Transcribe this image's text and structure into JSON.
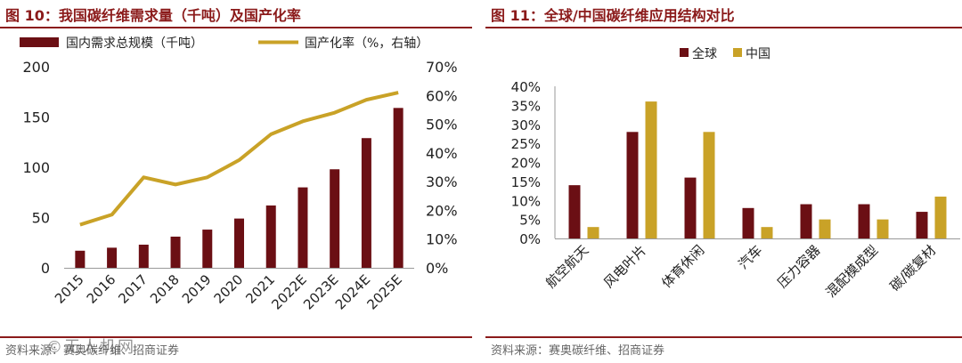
{
  "left": {
    "title": "图 10：我国碳纤维需求量（千吨）及国产化率",
    "source": "资料来源：赛奥碳纤维、招商证券",
    "watermark": "©无人机网"
  },
  "right": {
    "title": "图 11：全球/中国碳纤维应用结构对比",
    "source": "资料来源：赛奥碳纤维、招商证券"
  },
  "colors": {
    "bar": "#6b0f14",
    "line": "#c9a227",
    "accent": "#8b1a1a"
  },
  "chart_data": [
    {
      "type": "bar+line",
      "title": "我国碳纤维需求量（千吨）及国产化率",
      "categories": [
        "2015",
        "2016",
        "2017",
        "2018",
        "2019",
        "2020",
        "2021",
        "2022E",
        "2023E",
        "2024E",
        "2025E"
      ],
      "series": [
        {
          "name": "国内需求总规模（千吨）",
          "type": "bar",
          "axis": "left",
          "values": [
            17,
            20,
            23,
            31,
            38,
            49,
            62,
            80,
            98,
            129,
            159
          ]
        },
        {
          "name": "国产化率（%，右轴）",
          "type": "line",
          "axis": "right",
          "values": [
            15,
            18.5,
            31.5,
            29,
            31.5,
            37.5,
            46.5,
            51,
            54,
            58.5,
            61
          ]
        }
      ],
      "y_left": {
        "min": 0,
        "max": 200,
        "ticks": [
          "0",
          "50",
          "100",
          "150",
          "200"
        ]
      },
      "y_right": {
        "min": 0,
        "max": 70,
        "ticks": [
          "0%",
          "10%",
          "20%",
          "30%",
          "40%",
          "50%",
          "60%",
          "70%"
        ]
      },
      "legend": "top"
    },
    {
      "type": "bar",
      "title": "全球/中国碳纤维应用结构对比",
      "categories": [
        "航空航天",
        "风电叶片",
        "体育休闲",
        "汽车",
        "压力容器",
        "混配模成型",
        "碳/碳复材"
      ],
      "series": [
        {
          "name": "全球",
          "values": [
            14,
            28,
            16,
            8,
            9,
            9,
            7
          ]
        },
        {
          "name": "中国",
          "values": [
            3,
            36,
            28,
            3,
            5,
            5,
            11
          ]
        }
      ],
      "y": {
        "min": 0,
        "max": 40,
        "ticks": [
          "0%",
          "5%",
          "10%",
          "15%",
          "20%",
          "25%",
          "30%",
          "35%",
          "40%"
        ]
      },
      "legend": "top"
    }
  ]
}
